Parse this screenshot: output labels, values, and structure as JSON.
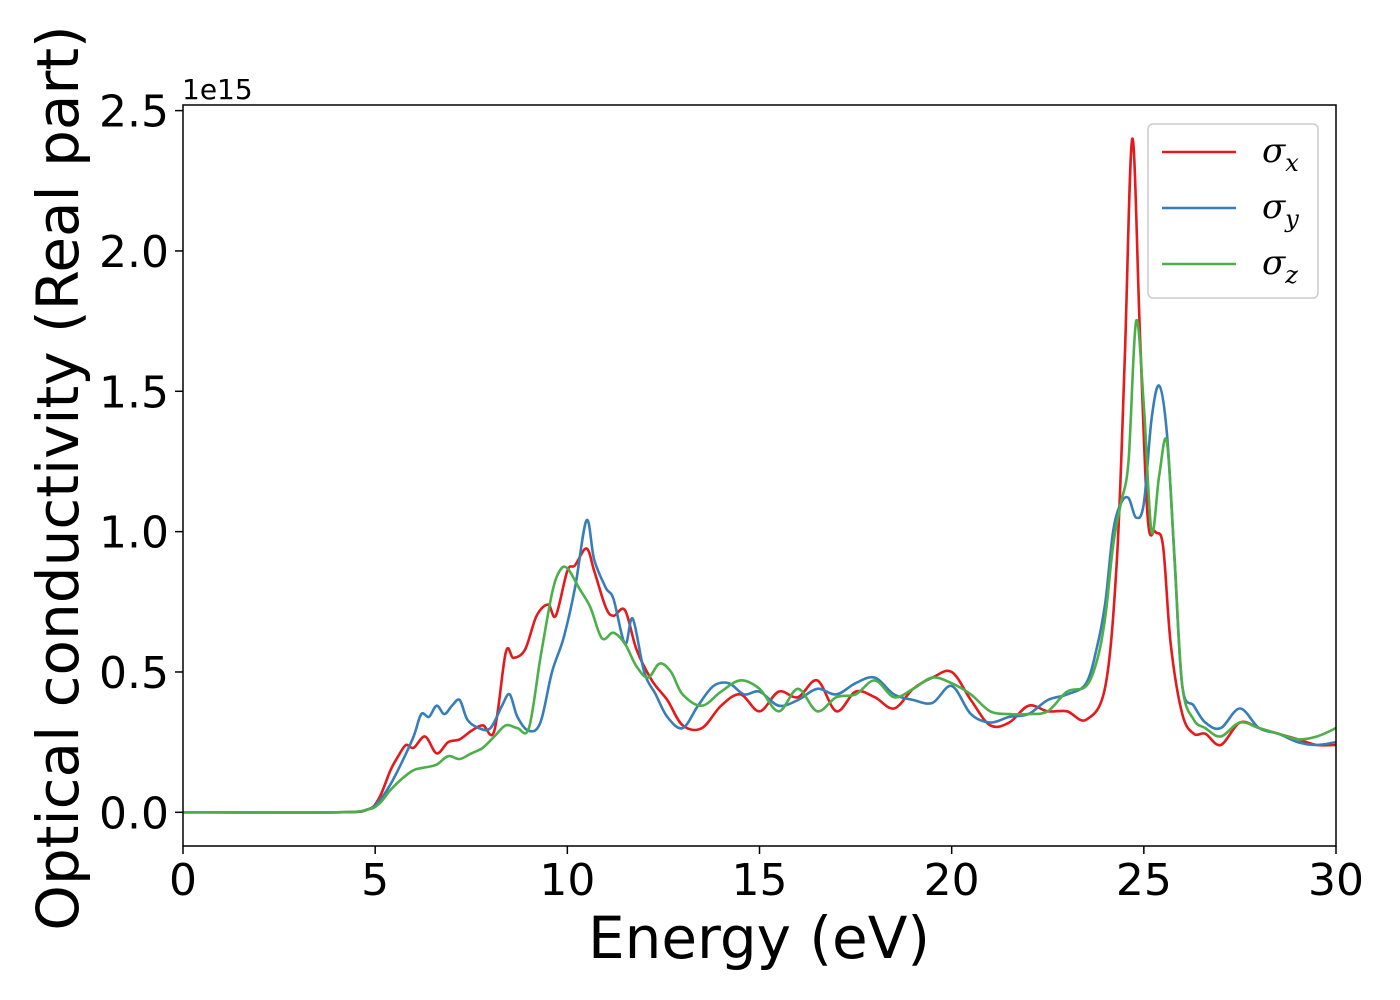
{
  "chart_data": {
    "type": "line",
    "title": "",
    "xlabel": "Energy (eV)",
    "ylabel": "Optical conductivity (Real part)",
    "y_offset_label": "1e15",
    "xlim": [
      0,
      30
    ],
    "ylim": [
      -0.12,
      2.52
    ],
    "xticks": [
      0,
      5,
      10,
      15,
      20,
      25,
      30
    ],
    "yticks": [
      0.0,
      0.5,
      1.0,
      1.5,
      2.0,
      2.5
    ],
    "xtick_labels": [
      "0",
      "5",
      "10",
      "15",
      "20",
      "25",
      "30"
    ],
    "ytick_labels": [
      "0.0",
      "0.5",
      "1.0",
      "1.5",
      "2.0",
      "2.5"
    ],
    "grid": false,
    "legend_position": "top-right",
    "series": [
      {
        "name": "σx",
        "symbol": "σ",
        "subscript": "x",
        "color": "#e41a1c",
        "x": [
          0,
          4,
          4.8,
          5.1,
          5.4,
          5.6,
          5.8,
          6.0,
          6.3,
          6.6,
          6.9,
          7.2,
          7.5,
          7.8,
          8.1,
          8.4,
          8.6,
          8.9,
          9.2,
          9.5,
          9.7,
          10.0,
          10.2,
          10.5,
          10.7,
          11.0,
          11.2,
          11.5,
          11.8,
          12.2,
          12.6,
          13.0,
          13.5,
          14.0,
          14.5,
          15.0,
          15.5,
          16.0,
          16.5,
          17.0,
          17.5,
          18.0,
          18.5,
          19.0,
          19.5,
          20.0,
          20.5,
          21.0,
          21.5,
          22.0,
          22.5,
          23.0,
          23.5,
          24.0,
          24.3,
          24.5,
          24.7,
          24.9,
          25.1,
          25.3,
          25.5,
          25.7,
          26.0,
          26.3,
          26.6,
          27.0,
          27.5,
          28.0,
          28.5,
          29.0,
          29.5,
          30.0
        ],
        "y": [
          0.0,
          0.0,
          0.01,
          0.05,
          0.15,
          0.2,
          0.24,
          0.23,
          0.27,
          0.21,
          0.25,
          0.26,
          0.29,
          0.31,
          0.29,
          0.57,
          0.55,
          0.58,
          0.7,
          0.74,
          0.7,
          0.86,
          0.88,
          0.94,
          0.86,
          0.73,
          0.7,
          0.72,
          0.58,
          0.47,
          0.4,
          0.31,
          0.3,
          0.38,
          0.42,
          0.36,
          0.43,
          0.41,
          0.47,
          0.36,
          0.43,
          0.41,
          0.37,
          0.44,
          0.48,
          0.5,
          0.4,
          0.31,
          0.32,
          0.38,
          0.36,
          0.36,
          0.33,
          0.45,
          0.9,
          1.6,
          2.4,
          1.7,
          1.05,
          1.0,
          0.95,
          0.6,
          0.35,
          0.28,
          0.28,
          0.24,
          0.32,
          0.3,
          0.28,
          0.26,
          0.24,
          0.24
        ]
      },
      {
        "name": "σy",
        "symbol": "σ",
        "subscript": "y",
        "color": "#377eb8",
        "x": [
          0,
          4,
          4.8,
          5.1,
          5.4,
          5.7,
          6.0,
          6.2,
          6.4,
          6.6,
          6.8,
          7.0,
          7.2,
          7.4,
          7.7,
          8.0,
          8.3,
          8.5,
          8.7,
          9.0,
          9.3,
          9.6,
          9.9,
          10.2,
          10.5,
          10.7,
          11.0,
          11.2,
          11.5,
          11.7,
          12.0,
          12.3,
          12.6,
          13.0,
          13.4,
          13.8,
          14.2,
          14.6,
          15.0,
          15.5,
          16.0,
          16.5,
          17.0,
          17.5,
          18.0,
          18.5,
          19.0,
          19.5,
          20.0,
          20.5,
          21.0,
          21.5,
          22.0,
          22.5,
          23.0,
          23.5,
          23.8,
          24.0,
          24.2,
          24.4,
          24.6,
          24.8,
          25.0,
          25.2,
          25.4,
          25.6,
          25.8,
          26.0,
          26.3,
          26.6,
          27.0,
          27.5,
          28.0,
          28.5,
          29.0,
          29.5,
          30.0
        ],
        "y": [
          0.0,
          0.0,
          0.01,
          0.04,
          0.1,
          0.18,
          0.27,
          0.35,
          0.34,
          0.38,
          0.35,
          0.38,
          0.4,
          0.33,
          0.3,
          0.3,
          0.38,
          0.42,
          0.34,
          0.29,
          0.32,
          0.5,
          0.62,
          0.8,
          1.04,
          0.9,
          0.8,
          0.76,
          0.6,
          0.69,
          0.5,
          0.42,
          0.34,
          0.3,
          0.38,
          0.45,
          0.46,
          0.42,
          0.43,
          0.38,
          0.4,
          0.44,
          0.42,
          0.46,
          0.48,
          0.42,
          0.4,
          0.39,
          0.45,
          0.35,
          0.32,
          0.34,
          0.35,
          0.4,
          0.42,
          0.46,
          0.6,
          0.75,
          1.0,
          1.1,
          1.12,
          1.05,
          1.1,
          1.4,
          1.52,
          1.35,
          0.9,
          0.45,
          0.38,
          0.32,
          0.3,
          0.37,
          0.3,
          0.28,
          0.25,
          0.24,
          0.25
        ]
      },
      {
        "name": "σz",
        "symbol": "σ",
        "subscript": "z",
        "color": "#4daf4a",
        "x": [
          0,
          4,
          4.8,
          5.1,
          5.4,
          5.7,
          6.0,
          6.3,
          6.6,
          6.9,
          7.2,
          7.5,
          7.8,
          8.1,
          8.4,
          8.7,
          9.0,
          9.3,
          9.6,
          9.8,
          10.0,
          10.3,
          10.6,
          10.9,
          11.2,
          11.5,
          11.8,
          12.1,
          12.4,
          12.7,
          13.0,
          13.5,
          14.0,
          14.5,
          15.0,
          15.5,
          16.0,
          16.5,
          17.0,
          17.5,
          18.0,
          18.5,
          19.0,
          19.5,
          20.0,
          20.5,
          21.0,
          21.5,
          22.0,
          22.5,
          23.0,
          23.5,
          23.8,
          24.0,
          24.2,
          24.4,
          24.6,
          24.8,
          25.0,
          25.2,
          25.4,
          25.6,
          25.8,
          26.0,
          26.3,
          26.6,
          27.0,
          27.5,
          28.0,
          28.5,
          29.0,
          29.5,
          30.0
        ],
        "y": [
          0.0,
          0.0,
          0.01,
          0.03,
          0.08,
          0.12,
          0.15,
          0.16,
          0.17,
          0.2,
          0.19,
          0.21,
          0.23,
          0.27,
          0.31,
          0.3,
          0.3,
          0.55,
          0.78,
          0.86,
          0.87,
          0.8,
          0.73,
          0.62,
          0.64,
          0.6,
          0.52,
          0.48,
          0.53,
          0.5,
          0.42,
          0.38,
          0.43,
          0.47,
          0.44,
          0.36,
          0.44,
          0.36,
          0.41,
          0.42,
          0.47,
          0.41,
          0.44,
          0.48,
          0.46,
          0.42,
          0.36,
          0.35,
          0.35,
          0.36,
          0.43,
          0.45,
          0.55,
          0.7,
          0.95,
          1.1,
          1.25,
          1.75,
          1.45,
          1.0,
          1.2,
          1.32,
          0.9,
          0.45,
          0.33,
          0.3,
          0.27,
          0.32,
          0.3,
          0.28,
          0.26,
          0.27,
          0.3
        ]
      }
    ]
  }
}
